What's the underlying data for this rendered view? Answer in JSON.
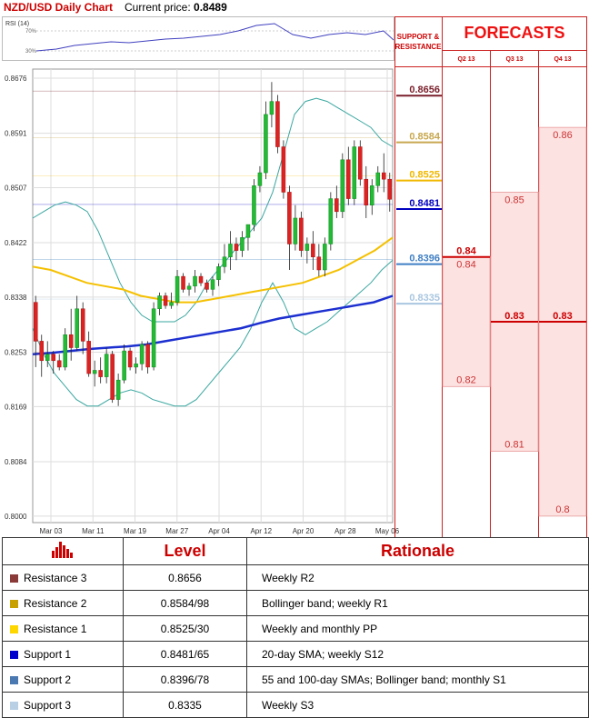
{
  "header": {
    "title": "NZD/USD Daily Chart",
    "price_label": "Current price:",
    "price_value": "0.8489"
  },
  "rsi": {
    "label": "RSI (14)",
    "levels": [
      "70%",
      "30%"
    ]
  },
  "panel": {
    "support_resistance_label": [
      "SUPPORT &",
      "RESISTANCE"
    ],
    "forecasts_title": "FORECASTS",
    "quarters": [
      "Q2 13",
      "Q3 13",
      "Q4 13"
    ]
  },
  "chart_data": [
    {
      "type": "candlestick",
      "title": "NZD/USD Daily Chart",
      "ylim": [
        0.799,
        0.869
      ],
      "y_ticks": [
        "0.8676",
        "0.8591",
        "0.8507",
        "0.8422",
        "0.8338",
        "0.8253",
        "0.8169",
        "0.8084",
        "0.8000"
      ],
      "x_ticks": [
        "Mar 03",
        "Mar 11",
        "Mar 19",
        "Mar 27",
        "Apr 04",
        "Apr 12",
        "Apr 20",
        "Apr 28",
        "May 06"
      ],
      "candles": [
        [
          0.833,
          0.834,
          0.823,
          0.827
        ],
        [
          0.827,
          0.828,
          0.8215,
          0.824
        ],
        [
          0.824,
          0.827,
          0.823,
          0.825
        ],
        [
          0.825,
          0.8255,
          0.822,
          0.824
        ],
        [
          0.824,
          0.825,
          0.8225,
          0.823
        ],
        [
          0.823,
          0.829,
          0.8225,
          0.828
        ],
        [
          0.828,
          0.832,
          0.824,
          0.826
        ],
        [
          0.826,
          0.834,
          0.8255,
          0.832
        ],
        [
          0.832,
          0.833,
          0.825,
          0.827
        ],
        [
          0.827,
          0.8285,
          0.8215,
          0.822
        ],
        [
          0.822,
          0.824,
          0.82,
          0.8225
        ],
        [
          0.8225,
          0.8245,
          0.8205,
          0.8215
        ],
        [
          0.8215,
          0.826,
          0.8205,
          0.825
        ],
        [
          0.825,
          0.8255,
          0.8175,
          0.818
        ],
        [
          0.818,
          0.822,
          0.817,
          0.821
        ],
        [
          0.821,
          0.8265,
          0.8205,
          0.8255
        ],
        [
          0.8255,
          0.826,
          0.8225,
          0.823
        ],
        [
          0.823,
          0.8245,
          0.822,
          0.8235
        ],
        [
          0.8235,
          0.827,
          0.8225,
          0.8265
        ],
        [
          0.8265,
          0.827,
          0.822,
          0.823
        ],
        [
          0.823,
          0.833,
          0.8225,
          0.832
        ],
        [
          0.832,
          0.8345,
          0.831,
          0.834
        ],
        [
          0.834,
          0.8345,
          0.832,
          0.8325
        ],
        [
          0.8325,
          0.8345,
          0.832,
          0.833
        ],
        [
          0.833,
          0.838,
          0.8325,
          0.837
        ],
        [
          0.837,
          0.8375,
          0.8345,
          0.835
        ],
        [
          0.835,
          0.836,
          0.834,
          0.8355
        ],
        [
          0.8355,
          0.838,
          0.8345,
          0.837
        ],
        [
          0.837,
          0.8375,
          0.8355,
          0.836
        ],
        [
          0.836,
          0.8365,
          0.8345,
          0.835
        ],
        [
          0.835,
          0.837,
          0.834,
          0.8365
        ],
        [
          0.8365,
          0.839,
          0.8355,
          0.8385
        ],
        [
          0.8385,
          0.842,
          0.8375,
          0.84
        ],
        [
          0.84,
          0.844,
          0.838,
          0.842
        ],
        [
          0.842,
          0.843,
          0.8395,
          0.841
        ],
        [
          0.841,
          0.844,
          0.84,
          0.843
        ],
        [
          0.843,
          0.845,
          0.841,
          0.845
        ],
        [
          0.845,
          0.852,
          0.844,
          0.851
        ],
        [
          0.851,
          0.854,
          0.85,
          0.853
        ],
        [
          0.853,
          0.864,
          0.852,
          0.862
        ],
        [
          0.862,
          0.867,
          0.86,
          0.864
        ],
        [
          0.864,
          0.865,
          0.856,
          0.857
        ],
        [
          0.857,
          0.858,
          0.849,
          0.85
        ],
        [
          0.85,
          0.851,
          0.838,
          0.842
        ],
        [
          0.842,
          0.848,
          0.841,
          0.846
        ],
        [
          0.846,
          0.847,
          0.84,
          0.841
        ],
        [
          0.841,
          0.843,
          0.839,
          0.842
        ],
        [
          0.842,
          0.844,
          0.838,
          0.84
        ],
        [
          0.84,
          0.842,
          0.837,
          0.838
        ],
        [
          0.838,
          0.843,
          0.837,
          0.842
        ],
        [
          0.842,
          0.85,
          0.841,
          0.849
        ],
        [
          0.849,
          0.851,
          0.846,
          0.847
        ],
        [
          0.847,
          0.856,
          0.846,
          0.855
        ],
        [
          0.855,
          0.857,
          0.848,
          0.849
        ],
        [
          0.849,
          0.858,
          0.848,
          0.857
        ],
        [
          0.857,
          0.858,
          0.851,
          0.852
        ],
        [
          0.852,
          0.854,
          0.846,
          0.848
        ],
        [
          0.848,
          0.852,
          0.8465,
          0.851
        ],
        [
          0.851,
          0.854,
          0.85,
          0.853
        ],
        [
          0.853,
          0.856,
          0.85,
          0.852
        ],
        [
          0.852,
          0.853,
          0.847,
          0.8489
        ]
      ],
      "bollinger_upper": [
        0.846,
        0.847,
        0.848,
        0.8485,
        0.848,
        0.847,
        0.844,
        0.84,
        0.836,
        0.833,
        0.831,
        0.83,
        0.83,
        0.83,
        0.831,
        0.833,
        0.836,
        0.838,
        0.84,
        0.842,
        0.844,
        0.846,
        0.85,
        0.856,
        0.862,
        0.864,
        0.8645,
        0.864,
        0.863,
        0.862,
        0.861,
        0.86,
        0.858,
        0.857
      ],
      "bollinger_lower": [
        0.829,
        0.825,
        0.822,
        0.82,
        0.818,
        0.817,
        0.817,
        0.818,
        0.819,
        0.8195,
        0.819,
        0.818,
        0.8175,
        0.817,
        0.817,
        0.818,
        0.82,
        0.822,
        0.824,
        0.826,
        0.829,
        0.833,
        0.836,
        0.833,
        0.829,
        0.828,
        0.829,
        0.83,
        0.8315,
        0.833,
        0.8345,
        0.836,
        0.838,
        0.8395
      ],
      "sma_yellow": [
        0.8385,
        0.838,
        0.837,
        0.836,
        0.8355,
        0.835,
        0.834,
        0.8335,
        0.833,
        0.833,
        0.8335,
        0.834,
        0.8345,
        0.835,
        0.8355,
        0.836,
        0.837,
        0.838,
        0.8395,
        0.841,
        0.843
      ],
      "sma_blue": [
        0.825,
        0.8252,
        0.8255,
        0.8258,
        0.826,
        0.8262,
        0.8265,
        0.827,
        0.8275,
        0.828,
        0.8285,
        0.829,
        0.8298,
        0.8305,
        0.831,
        0.8315,
        0.832,
        0.8325,
        0.833,
        0.834
      ],
      "levels": [
        {
          "value": 0.8656,
          "label": "0.8656",
          "color": "#7a1f2b"
        },
        {
          "value": 0.8584,
          "label": "0.8584",
          "color": "#c8a850"
        },
        {
          "value": 0.8525,
          "label": "0.8525",
          "color": "#f0b800"
        },
        {
          "value": 0.8481,
          "label": "0.8481",
          "color": "#0000c0"
        },
        {
          "value": 0.8396,
          "label": "0.8396",
          "color": "#3f7fc4"
        },
        {
          "value": 0.8335,
          "label": "0.8335",
          "color": "#a9c6e0"
        }
      ]
    },
    {
      "type": "forecast-bars",
      "quarters": [
        "Q2 13",
        "Q3 13",
        "Q4 13"
      ],
      "max": [
        0.84,
        0.85,
        0.86
      ],
      "max_labels": [
        "0.84",
        "0.85",
        "0.86"
      ],
      "min": [
        0.82,
        0.81,
        0.8
      ],
      "min_labels": [
        "0.82",
        "0.81",
        "0.8"
      ],
      "consensus": [
        0.84,
        0.83,
        0.83
      ],
      "consensus_labels": [
        "0.84",
        "0.83",
        "0.83"
      ],
      "ylim": [
        0.799,
        0.869
      ]
    }
  ],
  "table": {
    "headers": [
      "Level",
      "Rationale"
    ],
    "rows": [
      {
        "name": "Resistance 3",
        "value": "0.8656",
        "rationale": "Weekly R2",
        "color": "#8b3a3a"
      },
      {
        "name": "Resistance 2",
        "value": "0.8584/98",
        "rationale": "Bollinger band; weekly R1",
        "color": "#c8a000"
      },
      {
        "name": "Resistance 1",
        "value": "0.8525/30",
        "rationale": "Weekly and monthly PP",
        "color": "#ffd700"
      },
      {
        "name": "Support 1",
        "value": "0.8481/65",
        "rationale": "20-day SMA; weekly S12",
        "color": "#0000cc"
      },
      {
        "name": "Support 2",
        "value": "0.8396/78",
        "rationale": "55 and 100-day SMAs; Bollinger band; monthly S1",
        "color": "#4a78b0"
      },
      {
        "name": "Support 3",
        "value": "0.8335",
        "rationale": "Weekly S3",
        "color": "#b8cfe4"
      }
    ]
  }
}
